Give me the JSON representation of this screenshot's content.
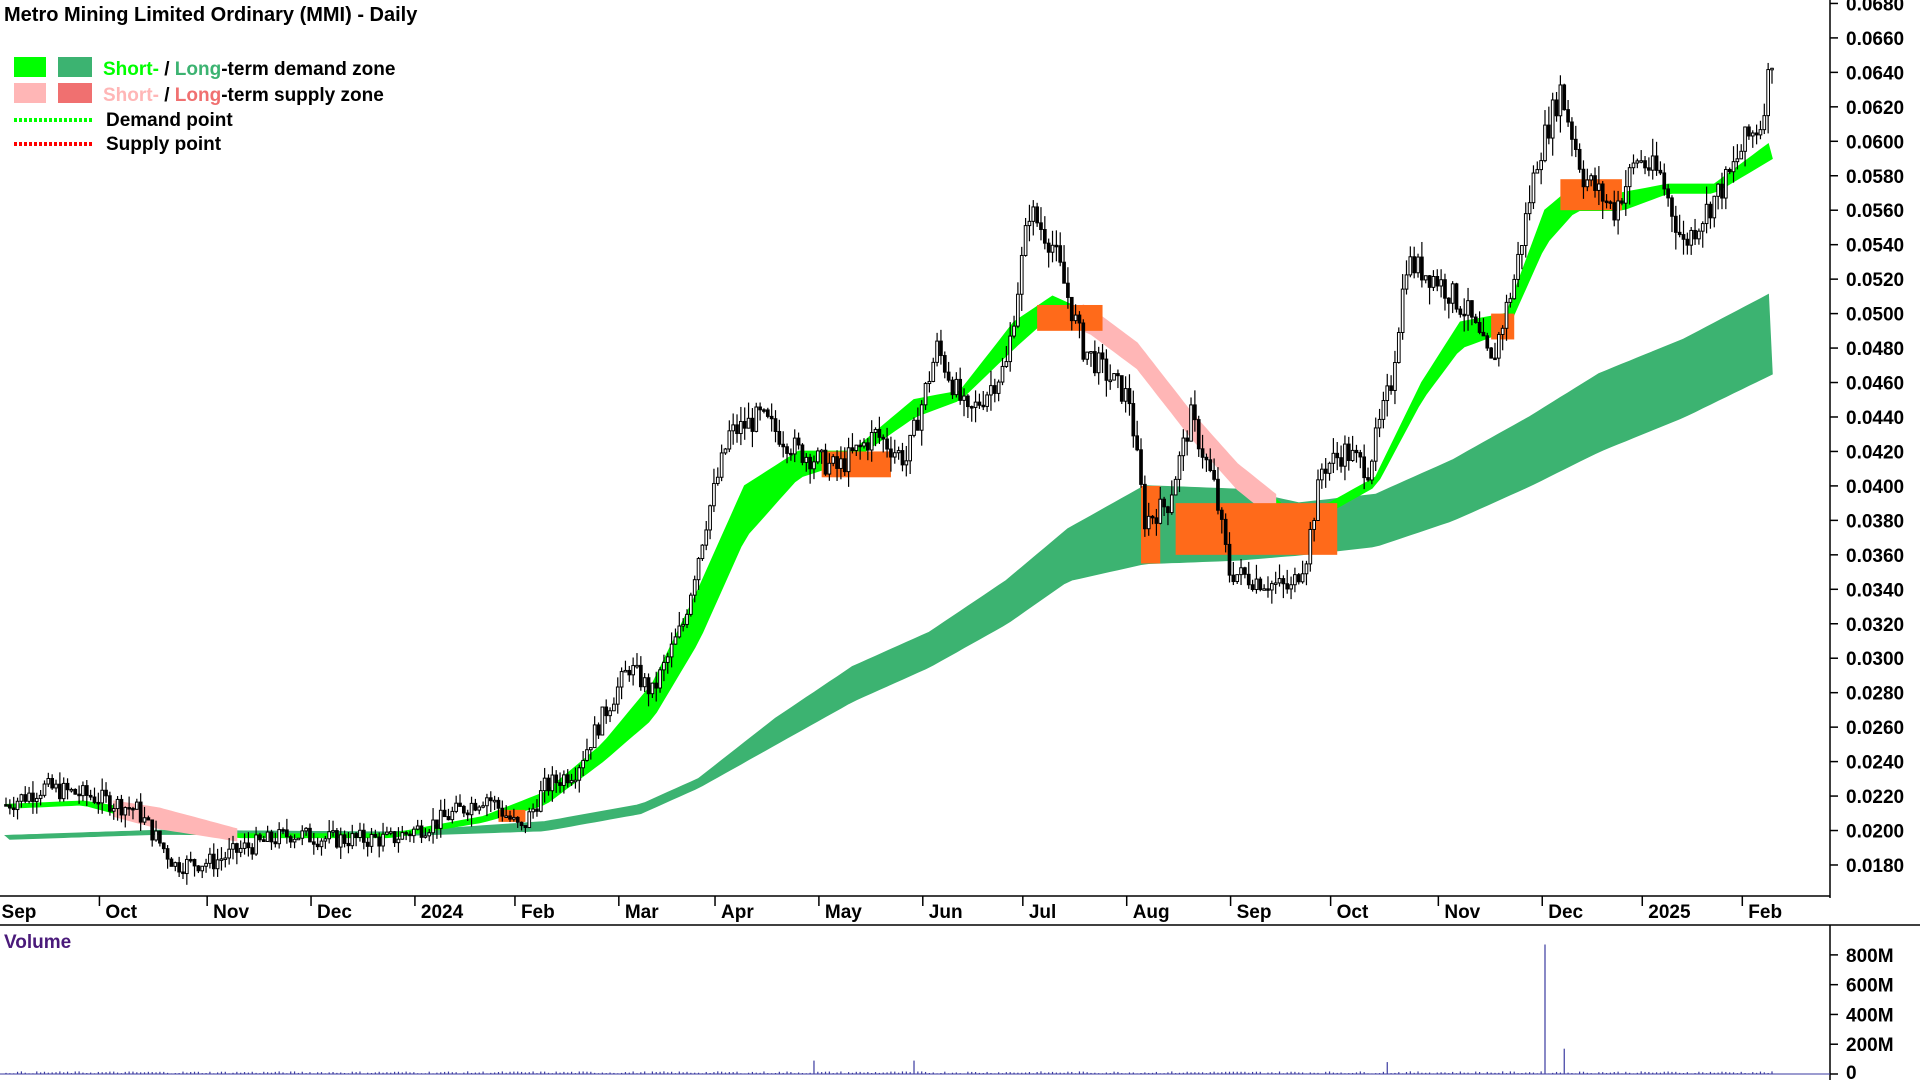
{
  "chart_data": {
    "type": "candlestick",
    "title": "Metro Mining Limited Ordinary (MMI) - Daily",
    "legend": {
      "demand_zone": {
        "short_label": "Short-",
        "sep": " / ",
        "long_label": "Long",
        "suffix": "-term demand zone"
      },
      "supply_zone": {
        "short_label": "Short-",
        "sep": " / ",
        "long_label": "Long",
        "suffix": "-term supply zone"
      },
      "demand_point": "Demand point",
      "supply_point": "Supply point"
    },
    "colors": {
      "short_demand": "#00ff00",
      "long_demand": "#3cb371",
      "short_supply": "#ffb6b6",
      "long_supply": "#f07070",
      "overlap": "#ff6a1a",
      "candle": "#000000",
      "volume": "#3a3aa0",
      "volume_title": "#4a1a7a"
    },
    "y_axis": {
      "ticks": [
        "0.0680",
        "0.0660",
        "0.0640",
        "0.0620",
        "0.0600",
        "0.0580",
        "0.0560",
        "0.0540",
        "0.0520",
        "0.0500",
        "0.0480",
        "0.0460",
        "0.0440",
        "0.0420",
        "0.0400",
        "0.0380",
        "0.0360",
        "0.0340",
        "0.0320",
        "0.0300",
        "0.0280",
        "0.0260",
        "0.0240",
        "0.0220",
        "0.0200",
        "0.0180"
      ],
      "range": [
        0.0162,
        0.0682
      ]
    },
    "x_axis": {
      "labels": [
        "Sep",
        "Oct",
        "Nov",
        "Dec",
        "2024",
        "Feb",
        "Mar",
        "Apr",
        "May",
        "Jun",
        "Jul",
        "Aug",
        "Sep",
        "Oct",
        "Nov",
        "Dec",
        "2025",
        "Feb"
      ],
      "label_index": [
        3,
        30,
        58,
        85,
        112,
        138,
        165,
        190,
        217,
        244,
        270,
        297,
        324,
        350,
        378,
        405,
        431,
        457
      ]
    },
    "volume": {
      "title": "Volume",
      "ticks": [
        "800M",
        "600M",
        "400M",
        "200M",
        "0"
      ],
      "tick_values": [
        800,
        600,
        400,
        200,
        0
      ],
      "unit": "M",
      "spikes": [
        {
          "i": 210,
          "v": 90
        },
        {
          "i": 236,
          "v": 90
        },
        {
          "i": 359,
          "v": 80
        },
        {
          "i": 400,
          "v": 870
        },
        {
          "i": 405,
          "v": 170
        }
      ]
    },
    "ohlc_anchors": [
      [
        0,
        0.0215
      ],
      [
        10,
        0.0225
      ],
      [
        22,
        0.022
      ],
      [
        34,
        0.0212
      ],
      [
        44,
        0.018
      ],
      [
        54,
        0.0182
      ],
      [
        62,
        0.019
      ],
      [
        74,
        0.0198
      ],
      [
        84,
        0.0195
      ],
      [
        100,
        0.0195
      ],
      [
        112,
        0.0205
      ],
      [
        125,
        0.022
      ],
      [
        134,
        0.02
      ],
      [
        140,
        0.0225
      ],
      [
        148,
        0.0235
      ],
      [
        156,
        0.027
      ],
      [
        162,
        0.0295
      ],
      [
        168,
        0.028
      ],
      [
        176,
        0.032
      ],
      [
        182,
        0.038
      ],
      [
        188,
        0.043
      ],
      [
        196,
        0.044
      ],
      [
        206,
        0.042
      ],
      [
        216,
        0.041
      ],
      [
        226,
        0.043
      ],
      [
        234,
        0.0415
      ],
      [
        242,
        0.048
      ],
      [
        250,
        0.044
      ],
      [
        260,
        0.047
      ],
      [
        266,
        0.056
      ],
      [
        272,
        0.054
      ],
      [
        280,
        0.048
      ],
      [
        288,
        0.046
      ],
      [
        292,
        0.045
      ],
      [
        296,
        0.038
      ],
      [
        302,
        0.039
      ],
      [
        308,
        0.044
      ],
      [
        314,
        0.04
      ],
      [
        318,
        0.035
      ],
      [
        326,
        0.0345
      ],
      [
        334,
        0.034
      ],
      [
        338,
        0.036
      ],
      [
        342,
        0.041
      ],
      [
        348,
        0.042
      ],
      [
        354,
        0.041
      ],
      [
        360,
        0.046
      ],
      [
        364,
        0.053
      ],
      [
        372,
        0.052
      ],
      [
        380,
        0.05
      ],
      [
        386,
        0.047
      ],
      [
        392,
        0.052
      ],
      [
        398,
        0.059
      ],
      [
        404,
        0.063
      ],
      [
        410,
        0.058
      ],
      [
        418,
        0.056
      ],
      [
        424,
        0.059
      ],
      [
        430,
        0.058
      ],
      [
        436,
        0.054
      ],
      [
        442,
        0.056
      ],
      [
        448,
        0.058
      ],
      [
        452,
        0.06
      ],
      [
        456,
        0.061
      ],
      [
        459,
        0.065
      ]
    ],
    "short_zone_anchors": [
      [
        0,
        0.0213,
        0.0215
      ],
      [
        20,
        0.0215,
        0.0217
      ],
      [
        40,
        0.0203,
        0.021
      ],
      [
        60,
        0.0196,
        0.0198
      ],
      [
        100,
        0.0196,
        0.0198
      ],
      [
        124,
        0.0205,
        0.0208
      ],
      [
        140,
        0.0215,
        0.0222
      ],
      [
        155,
        0.024,
        0.025
      ],
      [
        168,
        0.0265,
        0.0285
      ],
      [
        180,
        0.031,
        0.034
      ],
      [
        192,
        0.037,
        0.04
      ],
      [
        206,
        0.0405,
        0.042
      ],
      [
        220,
        0.0415,
        0.042
      ],
      [
        236,
        0.044,
        0.045
      ],
      [
        248,
        0.045,
        0.0455
      ],
      [
        262,
        0.048,
        0.0495
      ],
      [
        272,
        0.05,
        0.051
      ],
      [
        282,
        0.049,
        0.05
      ],
      [
        294,
        0.047,
        0.048
      ],
      [
        308,
        0.043,
        0.044
      ],
      [
        320,
        0.04,
        0.041
      ],
      [
        334,
        0.0375,
        0.0385
      ],
      [
        344,
        0.0385,
        0.039
      ],
      [
        356,
        0.04,
        0.0405
      ],
      [
        368,
        0.045,
        0.046
      ],
      [
        378,
        0.048,
        0.0495
      ],
      [
        390,
        0.049,
        0.05
      ],
      [
        400,
        0.054,
        0.056
      ],
      [
        408,
        0.056,
        0.0575
      ],
      [
        420,
        0.056,
        0.057
      ],
      [
        432,
        0.057,
        0.0575
      ],
      [
        444,
        0.057,
        0.0575
      ],
      [
        459,
        0.059,
        0.06
      ]
    ],
    "long_zone_anchors": [
      [
        0,
        0.0195,
        0.0197
      ],
      [
        40,
        0.0198,
        0.02
      ],
      [
        100,
        0.0197,
        0.0199
      ],
      [
        140,
        0.02,
        0.0205
      ],
      [
        165,
        0.021,
        0.0215
      ],
      [
        180,
        0.0225,
        0.023
      ],
      [
        200,
        0.025,
        0.0265
      ],
      [
        220,
        0.0275,
        0.0295
      ],
      [
        240,
        0.0295,
        0.0315
      ],
      [
        260,
        0.032,
        0.0345
      ],
      [
        276,
        0.0345,
        0.0375
      ],
      [
        296,
        0.0355,
        0.04
      ],
      [
        320,
        0.0357,
        0.0398
      ],
      [
        336,
        0.036,
        0.039
      ],
      [
        356,
        0.0365,
        0.0395
      ],
      [
        376,
        0.038,
        0.0415
      ],
      [
        396,
        0.04,
        0.044
      ],
      [
        414,
        0.042,
        0.0465
      ],
      [
        436,
        0.044,
        0.0485
      ],
      [
        459,
        0.0465,
        0.0512
      ]
    ],
    "overlap_segments": [
      [
        128,
        135,
        0.0205,
        0.0212
      ],
      [
        212,
        230,
        0.0405,
        0.042
      ],
      [
        268,
        285,
        0.049,
        0.0505
      ],
      [
        295,
        300,
        0.0355,
        0.04
      ],
      [
        304,
        346,
        0.036,
        0.039
      ],
      [
        386,
        392,
        0.0485,
        0.05
      ],
      [
        404,
        420,
        0.056,
        0.0578
      ]
    ]
  }
}
